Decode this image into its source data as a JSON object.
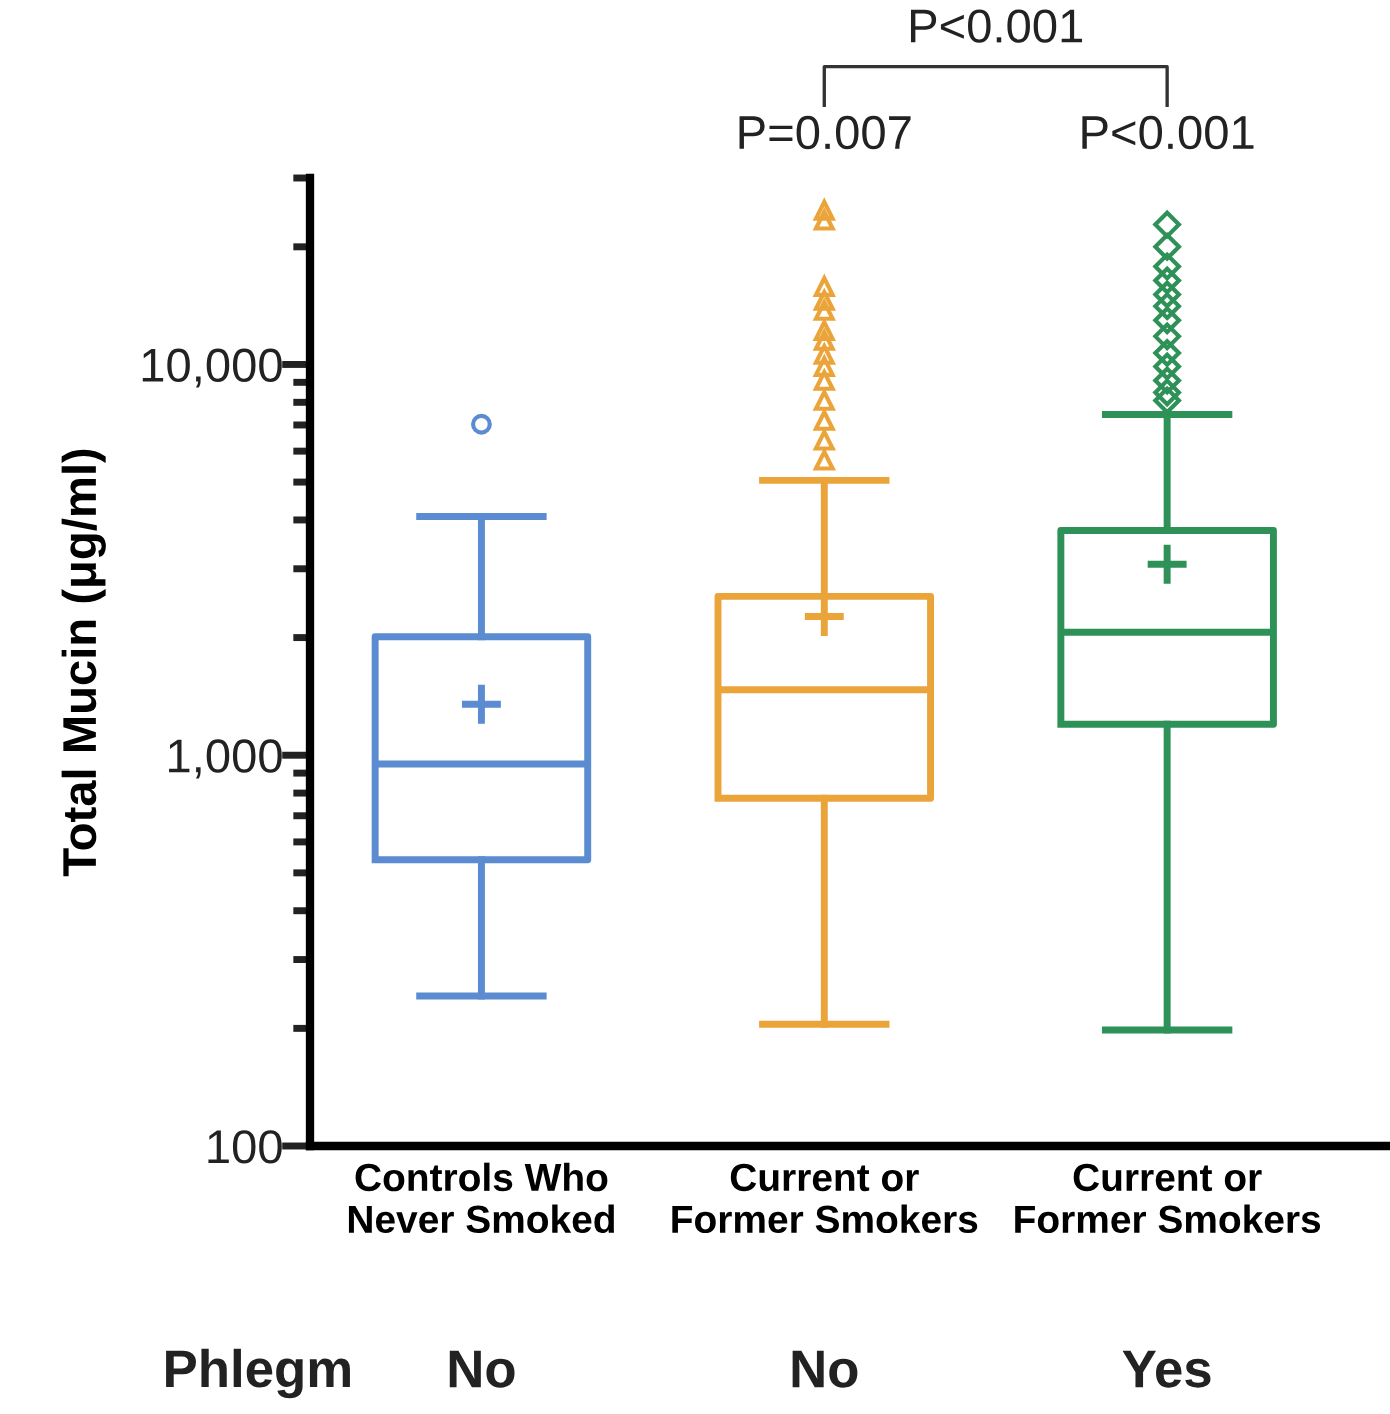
{
  "chart_data": {
    "type": "box",
    "ylabel": "Total Mucin (μg/ml)",
    "categories": [
      "Controls Who\nNever Smoked",
      "Current or\nFormer Smokers",
      "Current or\nFormer Smokers"
    ],
    "series": [
      {
        "color": "#5b8bd0",
        "marker": "circle",
        "boxes": [
          {
            "low": 242,
            "q1": 540,
            "median": 950,
            "q3": 2010,
            "high": 4080,
            "mean": 1350,
            "outliers": [
              7030
            ]
          },
          null,
          null
        ]
      },
      {
        "color": "#eba43a",
        "marker": "triangle",
        "boxes": [
          null,
          {
            "low": 205,
            "q1": 776,
            "median": 1470,
            "q3": 2550,
            "high": 5050,
            "mean": 2265,
            "outliers": [
              5690,
              6400,
              7190,
              8090,
              9100,
              9880,
              10610,
              11520,
              12210,
              13750,
              14580,
              15820,
              23400,
              24800
            ]
          },
          null
        ]
      },
      {
        "color": "#2e9158",
        "marker": "diamond",
        "boxes": [
          null,
          null,
          {
            "low": 198,
            "q1": 1200,
            "median": 2065,
            "q3": 3760,
            "high": 7450,
            "mean": 3080,
            "outliers": [
              8090,
              8480,
              9100,
              9880,
              10700,
              11800,
              12970,
              14100,
              15100,
              16400,
              17800,
              20000,
              22800
            ]
          }
        ]
      }
    ],
    "log": "y",
    "ylim": [
      100,
      30000
    ],
    "yticks": [
      100,
      {
        "value": 200,
        "label": null
      },
      {
        "value": 300,
        "label": null
      },
      {
        "value": 400,
        "label": null
      },
      {
        "value": 500,
        "label": null
      },
      {
        "value": 600,
        "label": null
      },
      {
        "value": 700,
        "label": null
      },
      {
        "value": 800,
        "label": null
      },
      {
        "value": 900,
        "label": null
      },
      {
        "value": 1000,
        "label": "1,000"
      },
      {
        "value": 2000,
        "label": null
      },
      {
        "value": 3000,
        "label": null
      },
      {
        "value": 4000,
        "label": null
      },
      {
        "value": 5000,
        "label": null
      },
      {
        "value": 6000,
        "label": null
      },
      {
        "value": 7000,
        "label": null
      },
      {
        "value": 8000,
        "label": null
      },
      {
        "value": 9000,
        "label": null
      },
      {
        "value": 10000,
        "label": "10,000"
      },
      {
        "value": 20000,
        "label": null
      },
      {
        "value": 30000,
        "label": null
      }
    ],
    "grid": false,
    "legend": false,
    "annotations": [
      "P=0.007",
      "P<0.001",
      "P<0.001",
      "Phlegm",
      "No",
      "No",
      "Yes"
    ]
  }
}
